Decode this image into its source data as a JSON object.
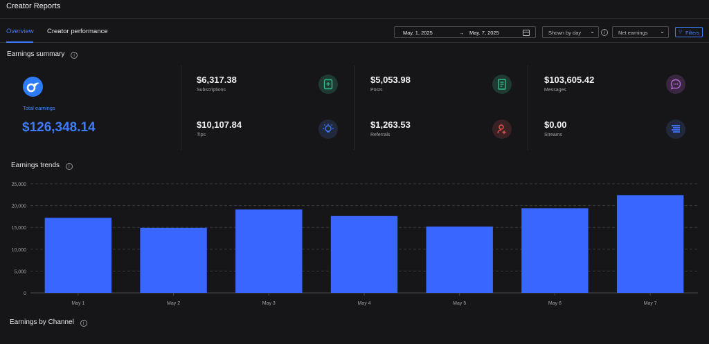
{
  "app": {
    "title": "Creator Reports"
  },
  "tabs": [
    {
      "label": "Overview",
      "active": true
    },
    {
      "label": "Creator performance",
      "active": false
    }
  ],
  "toolbar": {
    "date_start": "May. 1, 2025",
    "date_sep": "→",
    "date_end": "May. 7, 2025",
    "grouping": "Shown by day",
    "metric": "Net earnings",
    "filters_label": "Filters"
  },
  "summary": {
    "title": "Earnings summary",
    "total_label": "Total earnings",
    "total_value": "$126,348.14",
    "metrics": [
      {
        "value": "$6,317.38",
        "label": "Subscriptions",
        "icon": "bookmark-plus-icon",
        "color": "#2fbf8a"
      },
      {
        "value": "$10,107.84",
        "label": "Tips",
        "icon": "lightbulb-icon",
        "color": "#3f7bff"
      },
      {
        "value": "$5,053.98",
        "label": "Posts",
        "icon": "document-icon",
        "color": "#2fbf8a"
      },
      {
        "value": "$1,263.53",
        "label": "Referrals",
        "icon": "user-plus-icon",
        "color": "#e5544f"
      },
      {
        "value": "$103,605.42",
        "label": "Messages",
        "icon": "chat-bubble-icon",
        "color": "#b56ad6"
      },
      {
        "value": "$0.00",
        "label": "Streams",
        "icon": "stream-icon",
        "color": "#3f7bff"
      }
    ]
  },
  "trends": {
    "title": "Earnings trends"
  },
  "chart_data": {
    "type": "bar",
    "categories": [
      "May 1",
      "May 2",
      "May 3",
      "May 4",
      "May 5",
      "May 6",
      "May 7"
    ],
    "values": [
      17200,
      14900,
      19100,
      17600,
      15200,
      19400,
      22400
    ],
    "ylim": [
      0,
      25000
    ],
    "yticks": [
      "0",
      "5,000",
      "10,000",
      "15,000",
      "20,000",
      "25,000"
    ],
    "bar_color": "#3866ff",
    "grid": true
  },
  "channels": {
    "title": "Earnings by Channel"
  }
}
